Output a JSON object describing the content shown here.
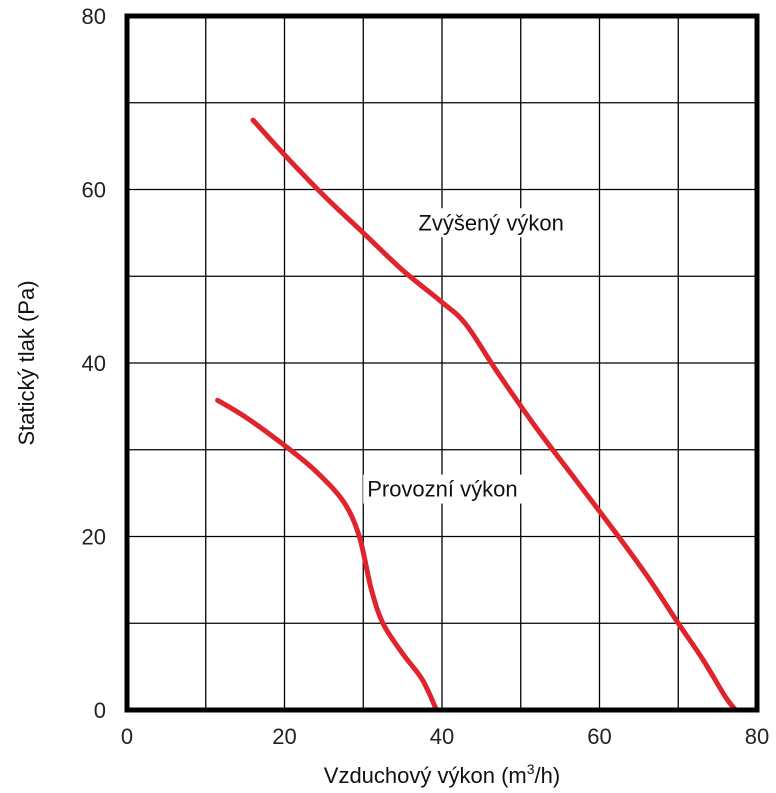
{
  "chart_data": {
    "type": "line",
    "title": "",
    "xlabel_prefix": "Vzduchový výkon (m",
    "xlabel_sup": "3",
    "xlabel_suffix": "/h)",
    "ylabel": "Statický tlak (Pa)",
    "xlim": [
      0,
      80
    ],
    "ylim": [
      0,
      80
    ],
    "xticks": [
      0,
      20,
      40,
      60,
      80
    ],
    "yticks": [
      0,
      20,
      40,
      60,
      80
    ],
    "grid": true,
    "line_color": "#e0242d",
    "series": [
      {
        "name": "Provozní výkon",
        "points": [
          [
            11.5,
            35.7
          ],
          [
            15,
            33.8
          ],
          [
            20,
            30.5
          ],
          [
            24,
            27.5
          ],
          [
            27.5,
            24
          ],
          [
            29.5,
            20
          ],
          [
            31,
            14
          ],
          [
            32.5,
            10
          ],
          [
            35,
            6.5
          ],
          [
            37.5,
            3.5
          ],
          [
            39.3,
            0
          ]
        ]
      },
      {
        "name": "Zvýšený výkon",
        "points": [
          [
            16,
            68
          ],
          [
            20,
            64
          ],
          [
            25,
            59.3
          ],
          [
            30,
            55
          ],
          [
            35,
            50.7
          ],
          [
            40,
            47
          ],
          [
            43,
            44.5
          ],
          [
            47,
            39
          ],
          [
            52,
            32.5
          ],
          [
            57,
            26.5
          ],
          [
            62,
            20.5
          ],
          [
            66,
            15.5
          ],
          [
            70,
            10
          ],
          [
            73,
            6
          ],
          [
            76,
            1.5
          ],
          [
            77.3,
            0
          ]
        ]
      }
    ]
  }
}
